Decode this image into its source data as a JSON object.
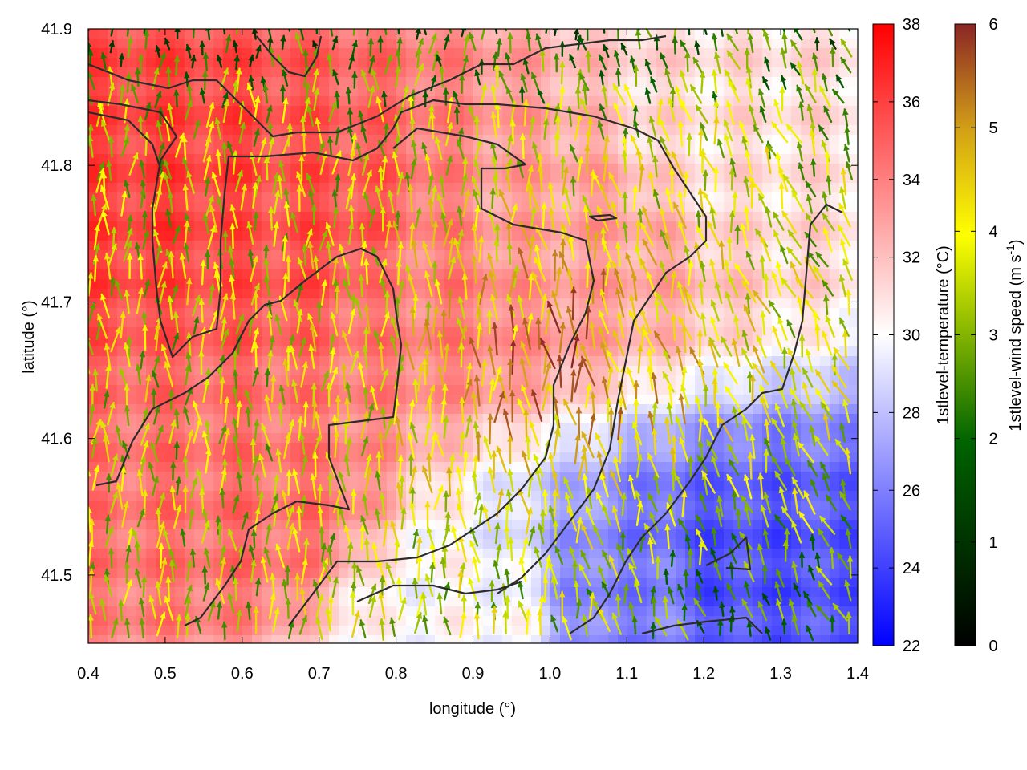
{
  "chart_data": {
    "type": "heatmap",
    "xlabel": "longitude (°)",
    "ylabel": "latitude (°)",
    "xlim": [
      0.4,
      1.4
    ],
    "ylim": [
      41.45,
      41.9
    ],
    "x_ticks": [
      "0.4",
      "0.5",
      "0.6",
      "0.7",
      "0.8",
      "0.9",
      "1.0",
      "1.1",
      "1.2",
      "1.3",
      "1.4"
    ],
    "y_ticks": [
      "41.5",
      "41.6",
      "41.7",
      "41.8",
      "41.9"
    ],
    "temperature_colorbar": {
      "label": "1stlevel-temperature (°C)",
      "range": [
        22,
        38
      ],
      "ticks": [
        "22",
        "24",
        "26",
        "28",
        "30",
        "32",
        "34",
        "36",
        "38"
      ],
      "colors": [
        "#0000ff",
        "#ffffff",
        "#ff0000"
      ]
    },
    "wind_colorbar": {
      "label_main": "1stlevel-wind speed (m s",
      "label_sup": "-1",
      "label_end": ")",
      "range": [
        0,
        6
      ],
      "ticks": [
        "0",
        "1",
        "2",
        "3",
        "4",
        "5",
        "6"
      ],
      "colors": [
        "#000000",
        "#006400",
        "#ffff00",
        "#d2a017",
        "#8b2525"
      ]
    },
    "temperature_regions": [
      {
        "lon": 0.5,
        "lat": 41.78,
        "temp": 36
      },
      {
        "lon": 0.7,
        "lat": 41.75,
        "temp": 35.5
      },
      {
        "lon": 0.85,
        "lat": 41.72,
        "temp": 34
      },
      {
        "lon": 0.6,
        "lat": 41.55,
        "temp": 34.5
      },
      {
        "lon": 1.0,
        "lat": 41.75,
        "temp": 33
      },
      {
        "lon": 1.25,
        "lat": 41.82,
        "temp": 31
      },
      {
        "lon": 1.25,
        "lat": 41.5,
        "temp": 24.5
      },
      {
        "lon": 1.1,
        "lat": 41.48,
        "temp": 26
      },
      {
        "lon": 0.9,
        "lat": 41.47,
        "temp": 30
      }
    ]
  }
}
